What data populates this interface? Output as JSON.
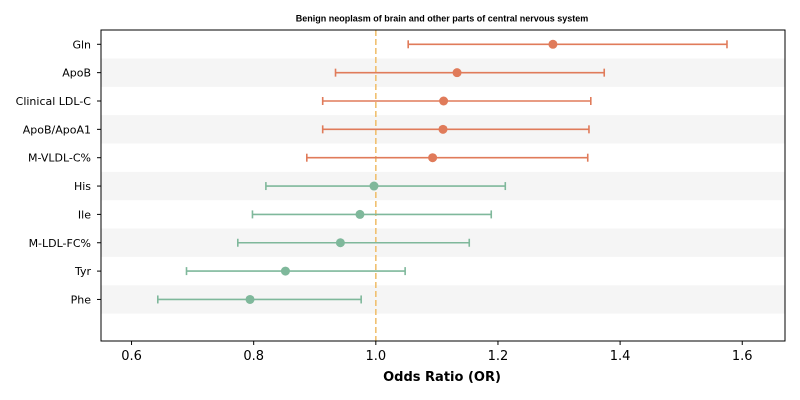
{
  "chart_data": {
    "type": "forest",
    "title": "Benign neoplasm of brain and other parts of central nervous system",
    "xlabel": "Odds Ratio (OR)",
    "xlim": [
      0.55,
      1.67
    ],
    "xticks": [
      "0.6",
      "0.8",
      "1.0",
      "1.2",
      "1.4",
      "1.6"
    ],
    "reference_line": 1.0,
    "grid": false,
    "colors": {
      "risk": "#e07b5a",
      "protective": "#7fb89b",
      "reference": "#f0c070",
      "band": "#f5f5f5"
    },
    "rows": [
      {
        "label": "Gln",
        "or": 1.29,
        "lower": 1.053,
        "upper": 1.575,
        "group": "risk"
      },
      {
        "label": "ApoB",
        "or": 1.133,
        "lower": 0.934,
        "upper": 1.374,
        "group": "risk"
      },
      {
        "label": "Clinical LDL-C",
        "or": 1.111,
        "lower": 0.913,
        "upper": 1.352,
        "group": "risk"
      },
      {
        "label": "ApoB/ApoA1",
        "or": 1.11,
        "lower": 0.913,
        "upper": 1.349,
        "group": "risk"
      },
      {
        "label": "M-VLDL-C%",
        "or": 1.093,
        "lower": 0.887,
        "upper": 1.347,
        "group": "risk"
      },
      {
        "label": "His",
        "or": 0.997,
        "lower": 0.82,
        "upper": 1.212,
        "group": "protective"
      },
      {
        "label": "Ile",
        "or": 0.974,
        "lower": 0.798,
        "upper": 1.189,
        "group": "protective"
      },
      {
        "label": "M-LDL-FC%",
        "or": 0.942,
        "lower": 0.774,
        "upper": 1.153,
        "group": "protective"
      },
      {
        "label": "Tyr",
        "or": 0.852,
        "lower": 0.69,
        "upper": 1.048,
        "group": "protective"
      },
      {
        "label": "Phe",
        "or": 0.794,
        "lower": 0.643,
        "upper": 0.976,
        "group": "protective"
      }
    ]
  }
}
